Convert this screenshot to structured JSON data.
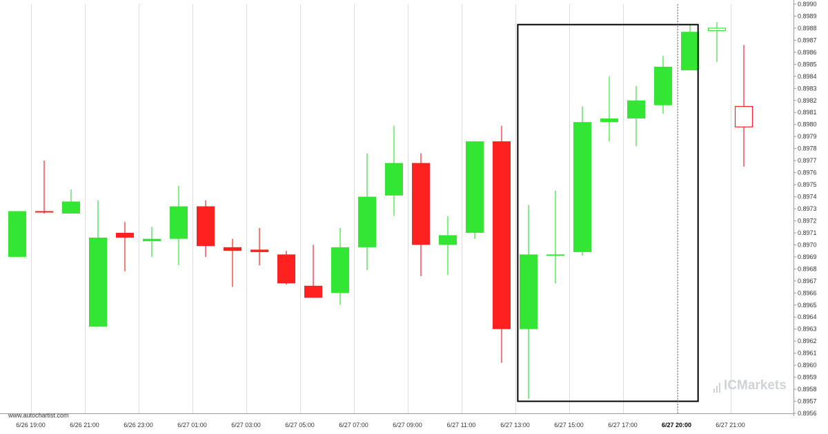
{
  "watermark": "www.autochartist.com",
  "brand": "ICMarkets",
  "colors": {
    "bull": "#33e633",
    "bear": "#ff2020",
    "pattern_box": "#000000",
    "grid": "#dddddd",
    "axis": "#999999"
  },
  "chart_data": {
    "type": "candlestick",
    "y_axis": {
      "min": 0.8956,
      "max": 0.899,
      "step": 0.0001,
      "tick_labels": [
        "0.8956",
        "0.8957",
        "0.8958",
        "0.8959",
        "0.8960",
        "0.8961",
        "0.8962",
        "0.8963",
        "0.8964",
        "0.8965",
        "0.8966",
        "0.8967",
        "0.8968",
        "0.8969",
        "0.8970",
        "0.8971",
        "0.8972",
        "0.8973",
        "0.8974",
        "0.8975",
        "0.8976",
        "0.8977",
        "0.8978",
        "0.8979",
        "0.8980",
        "0.8981",
        "0.8982",
        "0.8983",
        "0.8984",
        "0.8985",
        "0.8986",
        "0.8987",
        "0.8988",
        "0.8989",
        "0.8990"
      ]
    },
    "x_axis": {
      "labels": [
        {
          "index": 0.5,
          "text": "6/26 19:00"
        },
        {
          "index": 2.5,
          "text": "6/26 21:00"
        },
        {
          "index": 4.5,
          "text": "6/26 23:00"
        },
        {
          "index": 6.5,
          "text": "6/27 01:00"
        },
        {
          "index": 8.5,
          "text": "6/27 03:00"
        },
        {
          "index": 10.5,
          "text": "6/27 05:00"
        },
        {
          "index": 12.5,
          "text": "6/27 07:00"
        },
        {
          "index": 14.5,
          "text": "6/27 09:00"
        },
        {
          "index": 16.5,
          "text": "6/27 11:00"
        },
        {
          "index": 18.5,
          "text": "6/27 13:00"
        },
        {
          "index": 20.5,
          "text": "6/27 15:00"
        },
        {
          "index": 22.5,
          "text": "6/27 17:00"
        },
        {
          "index": 24.5,
          "text": "6/27 20:00",
          "current": true
        },
        {
          "index": 26.5,
          "text": "6/27 21:00"
        }
      ]
    },
    "candles": [
      {
        "o": 0.8969,
        "h": 0.89728,
        "l": 0.8969,
        "c": 0.89728
      },
      {
        "o": 0.89728,
        "h": 0.8977,
        "l": 0.89726,
        "c": 0.89727
      },
      {
        "o": 0.89726,
        "h": 0.89746,
        "l": 0.89726,
        "c": 0.89736
      },
      {
        "o": 0.89632,
        "h": 0.89737,
        "l": 0.89632,
        "c": 0.89706
      },
      {
        "o": 0.8971,
        "h": 0.89719,
        "l": 0.89678,
        "c": 0.89706
      },
      {
        "o": 0.89703,
        "h": 0.89715,
        "l": 0.8969,
        "c": 0.89705
      },
      {
        "o": 0.89705,
        "h": 0.89749,
        "l": 0.89683,
        "c": 0.89732
      },
      {
        "o": 0.89732,
        "h": 0.89737,
        "l": 0.8969,
        "c": 0.89699
      },
      {
        "o": 0.89698,
        "h": 0.89705,
        "l": 0.89665,
        "c": 0.89695
      },
      {
        "o": 0.89696,
        "h": 0.89714,
        "l": 0.89683,
        "c": 0.89694
      },
      {
        "o": 0.89692,
        "h": 0.89695,
        "l": 0.89667,
        "c": 0.89668
      },
      {
        "o": 0.89666,
        "h": 0.897,
        "l": 0.89656,
        "c": 0.89656
      },
      {
        "o": 0.8966,
        "h": 0.89714,
        "l": 0.8965,
        "c": 0.89698
      },
      {
        "o": 0.89698,
        "h": 0.89776,
        "l": 0.89679,
        "c": 0.8974
      },
      {
        "o": 0.89741,
        "h": 0.89799,
        "l": 0.89724,
        "c": 0.89768
      },
      {
        "o": 0.89768,
        "h": 0.89776,
        "l": 0.89674,
        "c": 0.897
      },
      {
        "o": 0.897,
        "h": 0.89724,
        "l": 0.89675,
        "c": 0.89708
      },
      {
        "o": 0.8971,
        "h": 0.89786,
        "l": 0.89705,
        "c": 0.89786
      },
      {
        "o": 0.89786,
        "h": 0.89799,
        "l": 0.89602,
        "c": 0.8963
      },
      {
        "o": 0.8963,
        "h": 0.89733,
        "l": 0.89572,
        "c": 0.89692
      },
      {
        "o": 0.89691,
        "h": 0.89745,
        "l": 0.89668,
        "c": 0.89692
      },
      {
        "o": 0.89694,
        "h": 0.89815,
        "l": 0.89691,
        "c": 0.89802
      },
      {
        "o": 0.89802,
        "h": 0.8984,
        "l": 0.89786,
        "c": 0.89805
      },
      {
        "o": 0.89805,
        "h": 0.89832,
        "l": 0.89782,
        "c": 0.8982
      },
      {
        "o": 0.89816,
        "h": 0.89857,
        "l": 0.89809,
        "c": 0.89848
      },
      {
        "o": 0.89845,
        "h": 0.89883,
        "l": 0.89845,
        "c": 0.89877
      },
      {
        "o": 0.89878,
        "h": 0.89885,
        "l": 0.89852,
        "c": 0.8988
      },
      {
        "o": 0.89815,
        "h": 0.89866,
        "l": 0.89765,
        "c": 0.89798
      }
    ],
    "pattern_box": {
      "from_index": 18.6,
      "to_index": 25.3,
      "high": 0.89883,
      "low": 0.8957
    },
    "current_time_index": 24.55
  }
}
